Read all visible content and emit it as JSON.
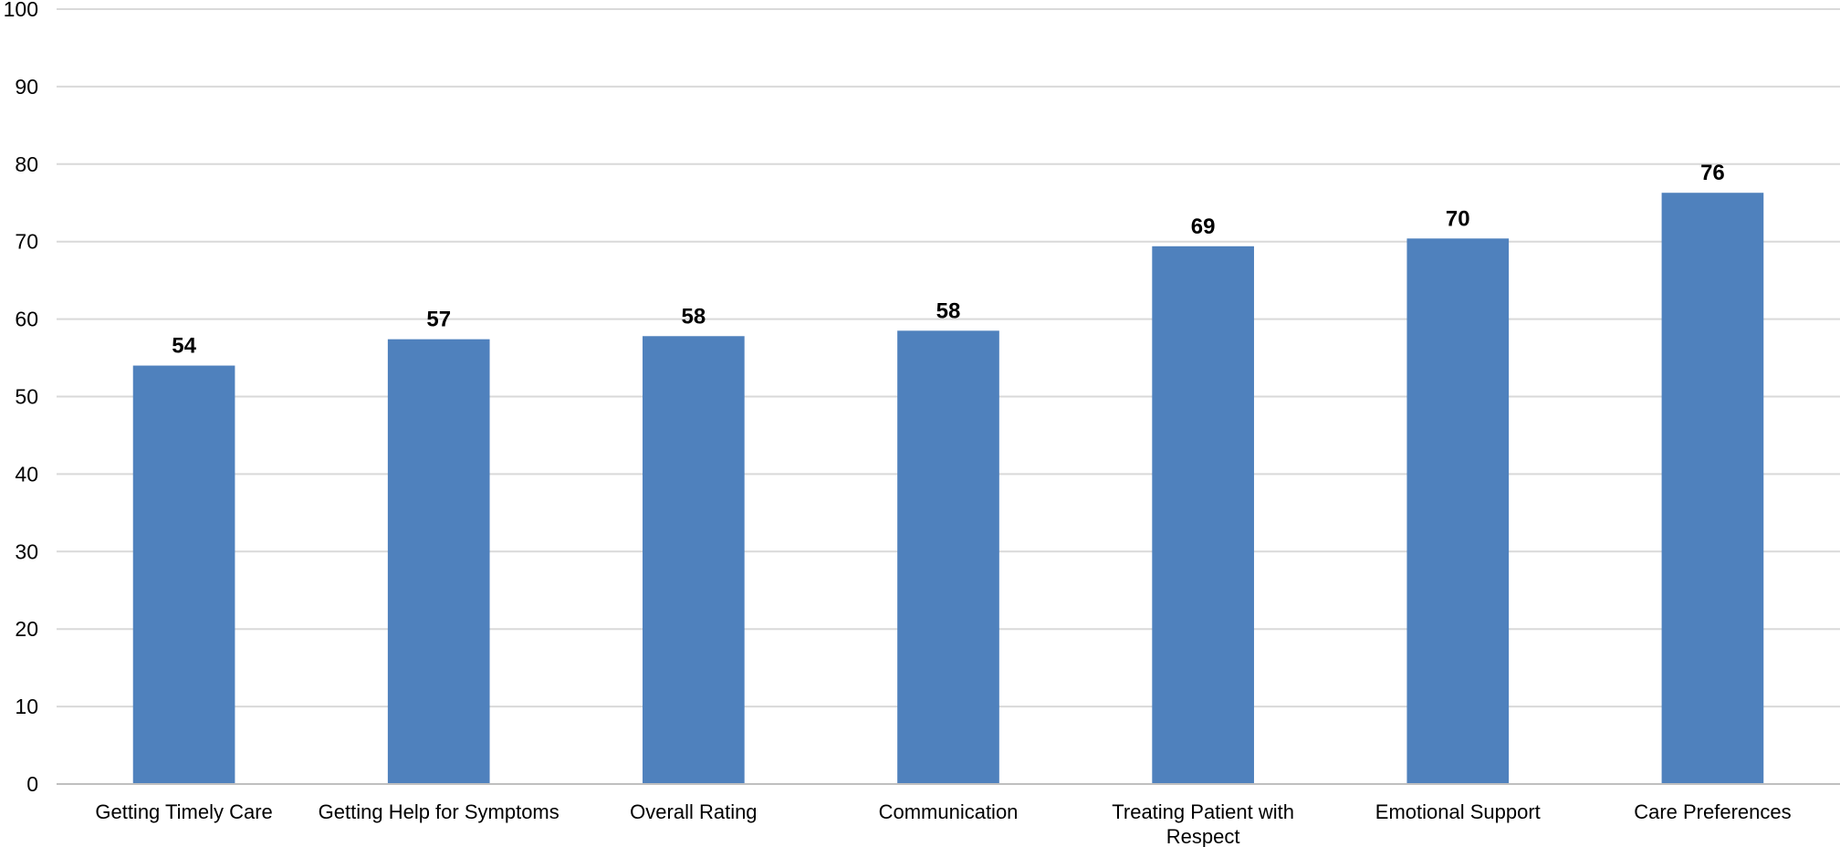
{
  "chart_data": {
    "type": "bar",
    "title": "",
    "xlabel": "",
    "ylabel": "",
    "categories": [
      "Getting Timely Care",
      "Getting Help for Symptoms",
      "Overall Rating",
      "Communication",
      "Treating Patient with Respect",
      "Emotional Support",
      "Care Preferences"
    ],
    "category_lines": [
      [
        "Getting Timely Care"
      ],
      [
        "Getting Help for Symptoms"
      ],
      [
        "Overall Rating"
      ],
      [
        "Communication"
      ],
      [
        "Treating Patient with",
        "Respect"
      ],
      [
        "Emotional Support"
      ],
      [
        "Care Preferences"
      ]
    ],
    "values": [
      54,
      57.4,
      57.8,
      58.5,
      69.4,
      70.4,
      76.3
    ],
    "data_labels": [
      "54",
      "57",
      "58",
      "58",
      "69",
      "70",
      "76"
    ],
    "ylim": [
      0,
      100
    ],
    "yticks": [
      0,
      10,
      20,
      30,
      40,
      50,
      60,
      70,
      80,
      90,
      100
    ],
    "grid": true,
    "legend": "none",
    "bar_color": "#4f81bd"
  }
}
